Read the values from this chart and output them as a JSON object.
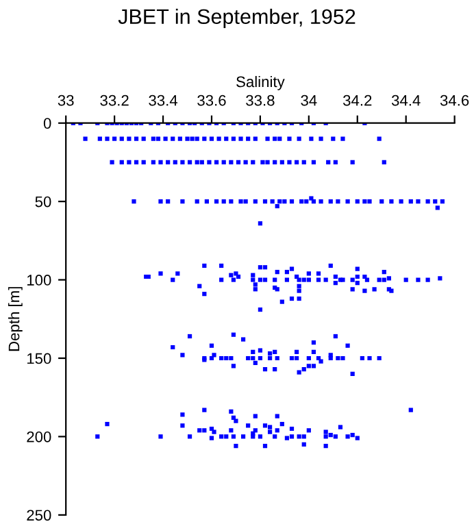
{
  "chart_data": {
    "type": "scatter",
    "title": "JBET in September, 1952",
    "xlabel": "Salinity",
    "ylabel": "Depth [m]",
    "xlim": [
      33,
      34.6
    ],
    "xticks": [
      33,
      33.2,
      33.4,
      33.6,
      33.8,
      34,
      34.2,
      34.4,
      34.6
    ],
    "ylim": [
      250,
      0
    ],
    "yticks": [
      0,
      50,
      100,
      150,
      200,
      250
    ],
    "marker": "square",
    "grid": false,
    "legend": false,
    "series": [
      {
        "color": "#0000ff",
        "x": [
          33.03,
          33.06,
          33.13,
          33.17,
          33.19,
          33.21,
          33.23,
          33.25,
          33.27,
          33.29,
          33.31,
          33.35,
          33.38,
          33.42,
          33.45,
          33.48,
          33.51,
          33.53,
          33.56,
          33.59,
          33.62,
          33.65,
          33.69,
          33.72,
          33.75,
          33.78,
          33.81,
          33.84,
          33.87,
          33.9,
          33.93,
          33.97,
          34.02,
          34.07,
          34.23,
          33.08,
          33.14,
          33.17,
          33.2,
          33.23,
          33.26,
          33.29,
          33.32,
          33.36,
          33.38,
          33.41,
          33.44,
          33.47,
          33.5,
          33.52,
          33.54,
          33.57,
          33.6,
          33.63,
          33.66,
          33.69,
          33.72,
          33.75,
          33.78,
          33.83,
          33.86,
          33.88,
          33.92,
          33.96,
          34.01,
          34.05,
          34.1,
          34.14,
          34.29,
          33.19,
          33.23,
          33.26,
          33.29,
          33.32,
          33.36,
          33.39,
          33.42,
          33.45,
          33.48,
          33.51,
          33.54,
          33.56,
          33.59,
          33.62,
          33.65,
          33.68,
          33.71,
          33.74,
          33.77,
          33.81,
          33.83,
          33.86,
          33.89,
          33.92,
          33.95,
          33.98,
          34.02,
          34.08,
          34.11,
          34.18,
          34.31,
          33.28,
          33.39,
          33.42,
          33.48,
          33.54,
          33.58,
          33.62,
          33.65,
          33.68,
          33.72,
          33.74,
          33.78,
          33.82,
          33.85,
          33.88,
          33.9,
          33.93,
          33.97,
          33.99,
          34.02,
          34.05,
          34.09,
          34.12,
          34.16,
          34.2,
          34.23,
          34.25,
          34.3,
          34.34,
          34.38,
          34.42,
          34.45,
          34.49,
          34.52,
          34.55,
          34.01,
          33.87,
          34.53,
          33.8,
          33.33,
          33.34,
          33.39,
          33.44,
          33.46,
          33.55,
          33.57,
          33.57,
          33.64,
          33.64,
          33.68,
          33.69,
          33.7,
          33.71,
          33.77,
          33.77,
          33.78,
          33.78,
          33.8,
          33.8,
          33.8,
          33.82,
          33.82,
          33.86,
          33.86,
          33.87,
          33.87,
          33.89,
          33.91,
          33.91,
          33.93,
          33.93,
          33.95,
          33.96,
          33.96,
          33.96,
          33.96,
          33.98,
          34.0,
          34.0,
          34.04,
          34.04,
          34.07,
          34.09,
          34.11,
          34.11,
          34.13,
          34.14,
          34.18,
          34.18,
          34.2,
          34.2,
          34.2,
          34.23,
          34.23,
          34.24,
          34.27,
          34.29,
          34.31,
          34.31,
          34.33,
          34.33,
          34.34,
          34.4,
          34.45,
          34.49,
          34.54,
          33.51,
          33.44,
          33.48,
          33.57,
          33.57,
          33.6,
          33.6,
          33.61,
          33.64,
          33.66,
          33.68,
          33.69,
          33.69,
          33.73,
          33.75,
          33.77,
          33.77,
          33.78,
          33.8,
          33.8,
          33.82,
          33.84,
          33.84,
          33.86,
          33.86,
          33.87,
          33.93,
          33.95,
          33.95,
          33.96,
          33.98,
          34.0,
          34.0,
          34.02,
          34.02,
          34.02,
          34.04,
          34.05,
          34.09,
          34.09,
          34.11,
          34.12,
          34.14,
          34.16,
          34.18,
          34.22,
          34.25,
          34.29,
          33.13,
          33.17,
          33.39,
          33.48,
          33.48,
          33.51,
          33.55,
          33.57,
          33.57,
          33.6,
          33.6,
          33.61,
          33.64,
          33.66,
          33.68,
          33.68,
          33.69,
          33.69,
          33.7,
          33.7,
          33.73,
          33.75,
          33.77,
          33.77,
          33.78,
          33.78,
          33.8,
          33.82,
          33.82,
          33.84,
          33.84,
          33.86,
          33.87,
          33.87,
          33.89,
          33.91,
          33.93,
          33.93,
          33.96,
          33.98,
          33.98,
          34.0,
          34.07,
          34.07,
          34.07,
          34.09,
          34.11,
          34.13,
          34.16,
          34.18,
          34.2,
          34.42
        ],
        "values": [
          0,
          0,
          0,
          0,
          0,
          0,
          0,
          0,
          0,
          0,
          0,
          0,
          0,
          0,
          0,
          0,
          0,
          0,
          0,
          0,
          0,
          0,
          0,
          0,
          0,
          0,
          0,
          0,
          0,
          0,
          0,
          0,
          0,
          0,
          0,
          10,
          10,
          10,
          10,
          10,
          10,
          10,
          10,
          10,
          10,
          10,
          10,
          10,
          10,
          10,
          10,
          10,
          10,
          10,
          10,
          10,
          10,
          10,
          10,
          10,
          10,
          10,
          10,
          10,
          10,
          10,
          10,
          10,
          10,
          25,
          25,
          25,
          25,
          25,
          25,
          25,
          25,
          25,
          25,
          25,
          25,
          25,
          25,
          25,
          25,
          25,
          25,
          25,
          25,
          25,
          25,
          25,
          25,
          25,
          25,
          25,
          25,
          25,
          25,
          25,
          25,
          50,
          50,
          50,
          50,
          50,
          50,
          50,
          50,
          50,
          50,
          50,
          50,
          50,
          50,
          50,
          50,
          50,
          50,
          50,
          50,
          50,
          50,
          50,
          50,
          50,
          50,
          50,
          50,
          50,
          50,
          50,
          50,
          50,
          50,
          50,
          48,
          53,
          54,
          64,
          98,
          98,
          96,
          100,
          96,
          104,
          109,
          91,
          91,
          100,
          97,
          100,
          96,
          98,
          97,
          100,
          103,
          106,
          92,
          100,
          119,
          92,
          100,
          100,
          105,
          95,
          106,
          114,
          95,
          100,
          93,
          112,
          98,
          100,
          104,
          107,
          112,
          100,
          96,
          100,
          96,
          100,
          100,
          91,
          98,
          102,
          100,
          100,
          100,
          106,
          93,
          98,
          102,
          98,
          107,
          100,
          106,
          100,
          95,
          100,
          99,
          106,
          107,
          100,
          100,
          100,
          99,
          136,
          143,
          148,
          150,
          151,
          142,
          150,
          148,
          150,
          150,
          150,
          135,
          155,
          138,
          150,
          150,
          146,
          153,
          145,
          150,
          157,
          150,
          147,
          146,
          157,
          150,
          150,
          146,
          150,
          159,
          157,
          150,
          155,
          140,
          146,
          155,
          150,
          152,
          148,
          150,
          136,
          150,
          150,
          142,
          160,
          150,
          150,
          150,
          200,
          192,
          200,
          186,
          193,
          200,
          196,
          183,
          196,
          195,
          201,
          197,
          200,
          200,
          184,
          196,
          188,
          200,
          190,
          206,
          200,
          193,
          198,
          200,
          187,
          196,
          200,
          193,
          206,
          194,
          197,
          200,
          187,
          196,
          192,
          201,
          195,
          200,
          200,
          200,
          205,
          196,
          197,
          200,
          206,
          199,
          200,
          194,
          200,
          199,
          201,
          183
        ]
      }
    ]
  }
}
